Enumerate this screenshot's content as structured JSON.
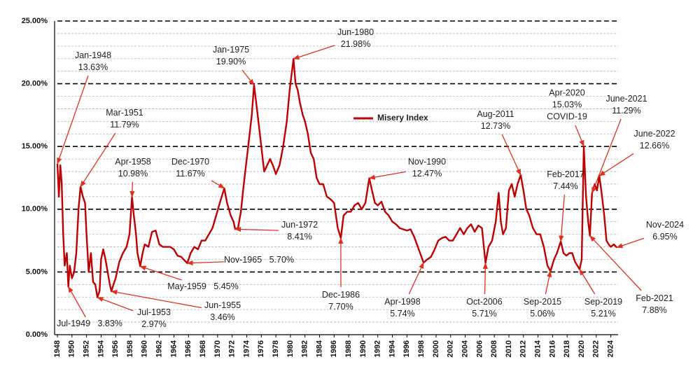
{
  "chart_data": {
    "type": "line",
    "legend": "Misery Index",
    "legend_position": "top-center",
    "grid": true,
    "xlim": [
      1948,
      2025
    ],
    "xticks": [
      1948,
      1950,
      1952,
      1954,
      1956,
      1958,
      1960,
      1962,
      1964,
      1966,
      1968,
      1970,
      1972,
      1974,
      1976,
      1978,
      1980,
      1982,
      1984,
      1986,
      1988,
      1990,
      1992,
      1994,
      1996,
      1998,
      2000,
      2002,
      2004,
      2006,
      2008,
      2010,
      2012,
      2014,
      2016,
      2018,
      2020,
      2022,
      2024
    ],
    "ylim": [
      0,
      25
    ],
    "yticks": [
      {
        "value": 0,
        "label": "0.00%"
      },
      {
        "value": 5,
        "label": "5.00%"
      },
      {
        "value": 10,
        "label": "10.00%"
      },
      {
        "value": 15,
        "label": "15.00%"
      },
      {
        "value": 20,
        "label": "20.00%"
      },
      {
        "value": 25,
        "label": "25.00%"
      }
    ],
    "minor_yticks": [
      1,
      2,
      3,
      4,
      6,
      7,
      8,
      9,
      11,
      12,
      13,
      14,
      16,
      17,
      18,
      19,
      21,
      22,
      23,
      24
    ],
    "color": "#c00000",
    "x": [
      1948.0,
      1948.2,
      1948.4,
      1948.6,
      1948.8,
      1949.0,
      1949.3,
      1949.5,
      1949.7,
      1950.0,
      1950.3,
      1950.6,
      1950.9,
      1951.17,
      1951.5,
      1951.8,
      1952.0,
      1952.3,
      1952.6,
      1952.9,
      1953.2,
      1953.5,
      1953.8,
      1954.0,
      1954.3,
      1954.6,
      1954.9,
      1955.2,
      1955.42,
      1955.7,
      1956.0,
      1956.5,
      1957.0,
      1957.5,
      1957.9,
      1958.25,
      1958.5,
      1958.8,
      1959.0,
      1959.37,
      1959.7,
      1960.0,
      1960.5,
      1961.0,
      1961.5,
      1962.0,
      1962.5,
      1963.0,
      1963.5,
      1964.0,
      1964.5,
      1965.0,
      1965.83,
      1966.3,
      1966.8,
      1967.3,
      1967.8,
      1968.3,
      1968.8,
      1969.3,
      1969.8,
      1970.3,
      1970.92,
      1971.3,
      1971.8,
      1972.2,
      1972.42,
      1972.8,
      1973.2,
      1973.6,
      1973.9,
      1974.3,
      1974.7,
      1975.0,
      1975.3,
      1975.7,
      1976.0,
      1976.4,
      1976.8,
      1977.2,
      1977.6,
      1978.0,
      1978.5,
      1979.0,
      1979.5,
      1979.9,
      1980.42,
      1980.7,
      1981.0,
      1981.3,
      1981.7,
      1982.0,
      1982.4,
      1982.8,
      1983.2,
      1983.6,
      1984.0,
      1984.5,
      1985.0,
      1985.5,
      1986.0,
      1986.5,
      1986.92,
      1987.3,
      1987.8,
      1988.3,
      1988.8,
      1989.3,
      1989.8,
      1990.3,
      1990.83,
      1991.2,
      1991.6,
      1992.0,
      1992.5,
      1993.0,
      1993.5,
      1994.0,
      1994.5,
      1995.0,
      1995.5,
      1996.0,
      1996.5,
      1997.0,
      1997.5,
      1998.29,
      1998.8,
      1999.3,
      1999.8,
      2000.3,
      2000.8,
      2001.3,
      2001.8,
      2002.3,
      2002.8,
      2003.3,
      2003.8,
      2004.3,
      2004.8,
      2005.3,
      2005.8,
      2006.3,
      2006.79,
      2007.2,
      2007.7,
      2008.2,
      2008.6,
      2008.9,
      2009.2,
      2009.6,
      2010.0,
      2010.4,
      2010.8,
      2011.2,
      2011.62,
      2012.0,
      2012.4,
      2012.8,
      2013.3,
      2013.8,
      2014.3,
      2014.8,
      2015.3,
      2015.71,
      2016.2,
      2016.6,
      2017.13,
      2017.5,
      2017.9,
      2018.3,
      2018.7,
      2019.1,
      2019.71,
      2020.0,
      2020.29,
      2020.6,
      2020.9,
      2021.13,
      2021.42,
      2021.8,
      2022.1,
      2022.42,
      2022.8,
      2023.1,
      2023.4,
      2023.7,
      2024.0,
      2024.4,
      2024.83
    ],
    "values": [
      13.63,
      11.0,
      13.5,
      12.0,
      8.0,
      5.5,
      6.5,
      3.83,
      5.5,
      4.5,
      5.0,
      6.5,
      10.0,
      11.79,
      11.0,
      10.5,
      8.0,
      5.0,
      6.5,
      4.2,
      4.0,
      2.97,
      3.5,
      6.0,
      6.8,
      6.0,
      5.0,
      4.0,
      3.46,
      4.0,
      4.5,
      5.8,
      6.5,
      7.0,
      8.0,
      10.98,
      9.5,
      8.0,
      6.5,
      5.45,
      6.5,
      7.2,
      7.0,
      8.2,
      8.3,
      7.2,
      7.0,
      7.0,
      7.0,
      6.8,
      6.3,
      6.2,
      5.7,
      6.5,
      7.0,
      6.8,
      7.5,
      7.5,
      8.0,
      8.5,
      9.5,
      10.5,
      11.67,
      10.5,
      9.5,
      9.0,
      8.41,
      8.5,
      9.8,
      12.0,
      13.5,
      15.5,
      17.5,
      19.9,
      18.5,
      16.5,
      15.0,
      13.0,
      13.5,
      14.0,
      13.5,
      12.8,
      13.5,
      15.0,
      17.0,
      19.5,
      21.98,
      20.0,
      19.5,
      18.5,
      17.5,
      17.0,
      16.0,
      14.5,
      14.0,
      12.5,
      12.0,
      12.0,
      11.0,
      10.8,
      10.5,
      8.5,
      7.7,
      9.5,
      9.8,
      9.8,
      10.3,
      10.5,
      10.0,
      10.5,
      12.47,
      11.5,
      10.5,
      10.3,
      10.6,
      9.8,
      9.5,
      9.0,
      8.8,
      8.5,
      8.4,
      8.3,
      8.4,
      7.8,
      7.0,
      5.74,
      6.0,
      6.2,
      6.8,
      7.5,
      7.7,
      7.8,
      7.5,
      7.5,
      8.0,
      8.5,
      8.0,
      8.5,
      8.8,
      8.2,
      8.7,
      8.5,
      5.71,
      7.0,
      7.5,
      9.0,
      11.3,
      9.0,
      8.0,
      8.5,
      11.5,
      12.0,
      11.0,
      12.0,
      12.73,
      11.5,
      10.0,
      9.5,
      8.5,
      8.0,
      8.0,
      7.0,
      5.5,
      5.06,
      6.0,
      6.5,
      7.44,
      6.5,
      6.3,
      6.5,
      6.5,
      5.8,
      5.21,
      6.0,
      15.03,
      11.0,
      9.0,
      7.88,
      11.29,
      12.0,
      11.5,
      12.66,
      11.0,
      9.5,
      7.5,
      7.2,
      7.0,
      7.2,
      6.95
    ],
    "annotations": [
      {
        "date": "Jan-1948",
        "x": 1948.0,
        "value": 13.63,
        "value_label": "13.63%"
      },
      {
        "date": "Mar-1951",
        "x": 1951.17,
        "value": 11.79,
        "value_label": "11.79%"
      },
      {
        "date": "Apr-1958",
        "x": 1958.25,
        "value": 10.98,
        "value_label": "10.98%"
      },
      {
        "date": "Dec-1970",
        "x": 1970.92,
        "value": 11.67,
        "value_label": "11.67%"
      },
      {
        "date": "Jan-1975",
        "x": 1975.0,
        "value": 19.9,
        "value_label": "19.90%"
      },
      {
        "date": "Jun-1980",
        "x": 1980.42,
        "value": 21.98,
        "value_label": "21.98%"
      },
      {
        "date": "Jun-1972",
        "x": 1972.42,
        "value": 8.41,
        "value_label": "8.41%"
      },
      {
        "date": "Nov-1965",
        "x": 1965.83,
        "value": 5.7,
        "value_label": "5.70%"
      },
      {
        "date": "May-1959",
        "x": 1959.37,
        "value": 5.45,
        "value_label": "5.45%"
      },
      {
        "date": "Jul-1949",
        "x": 1949.5,
        "value": 3.83,
        "value_label": "3.83%"
      },
      {
        "date": "Jul-1953",
        "x": 1953.5,
        "value": 2.97,
        "value_label": "2.97%"
      },
      {
        "date": "Jun-1955",
        "x": 1955.42,
        "value": 3.46,
        "value_label": "3.46%"
      },
      {
        "date": "Dec-1986",
        "x": 1986.92,
        "value": 7.7,
        "value_label": "7.70%"
      },
      {
        "date": "Nov-1990",
        "x": 1990.83,
        "value": 12.47,
        "value_label": "12.47%"
      },
      {
        "date": "Apr-1998",
        "x": 1998.29,
        "value": 5.74,
        "value_label": "5.74%"
      },
      {
        "date": "Oct-2006",
        "x": 2006.79,
        "value": 5.71,
        "value_label": "5.71%"
      },
      {
        "date": "Aug-2011",
        "x": 2011.62,
        "value": 12.73,
        "value_label": "12.73%"
      },
      {
        "date": "Sep-2015",
        "x": 2015.71,
        "value": 5.06,
        "value_label": "5.06%"
      },
      {
        "date": "Feb-2017",
        "x": 2017.13,
        "value": 7.44,
        "value_label": "7.44%"
      },
      {
        "date": "Apr-2020",
        "x": 2020.29,
        "value": 15.03,
        "value_label": "15.03%",
        "note": "COVID-19"
      },
      {
        "date": "June-2021",
        "x": 2021.42,
        "value": 11.29,
        "value_label": "11.29%"
      },
      {
        "date": "June-2022",
        "x": 2022.42,
        "value": 12.66,
        "value_label": "12.66%"
      },
      {
        "date": "Sep-2019",
        "x": 2019.71,
        "value": 5.21,
        "value_label": "5.21%"
      },
      {
        "date": "Feb-2021",
        "x": 2021.13,
        "value": 7.88,
        "value_label": "7.88%"
      },
      {
        "date": "Nov-2024",
        "x": 2024.83,
        "value": 6.95,
        "value_label": "6.95%"
      }
    ]
  }
}
